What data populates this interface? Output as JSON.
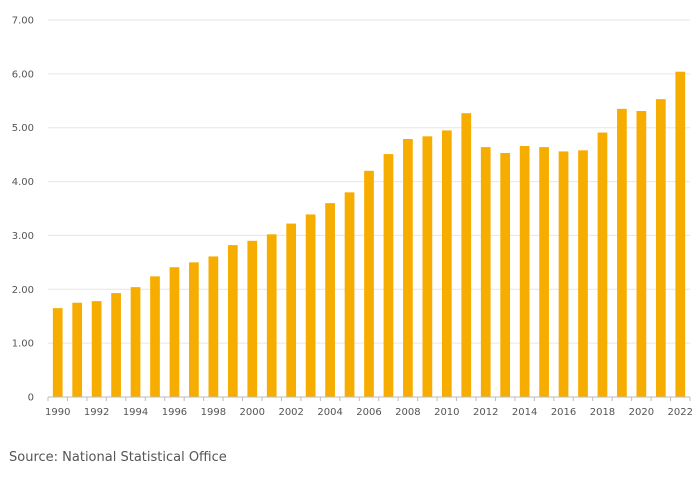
{
  "source": "Source: National Statistical Office",
  "colors": {
    "bar": "#F6AD00",
    "grid": "#e6e6e6",
    "axis": "#bbbbbb",
    "text": "#555555"
  },
  "chart_data": {
    "type": "bar",
    "title": "",
    "xlabel": "",
    "ylabel": "",
    "ylim": [
      0,
      7
    ],
    "grid": true,
    "y_ticks": [
      "0",
      "1.00",
      "2.00",
      "3.00",
      "4.00",
      "5.00",
      "6.00",
      "7.00"
    ],
    "x_tick_labels": [
      "1990",
      "1992",
      "1994",
      "1996",
      "1998",
      "2000",
      "2002",
      "2004",
      "2006",
      "2008",
      "2010",
      "2012",
      "2014",
      "2016",
      "2018",
      "2020",
      "2022"
    ],
    "categories": [
      "1990",
      "1991",
      "1992",
      "1993",
      "1994",
      "1995",
      "1996",
      "1997",
      "1998",
      "1999",
      "2000",
      "2001",
      "2002",
      "2003",
      "2004",
      "2005",
      "2006",
      "2007",
      "2008",
      "2009",
      "2010",
      "2011",
      "2012",
      "2013",
      "2014",
      "2015",
      "2016",
      "2017",
      "2018",
      "2019",
      "2020",
      "2021",
      "2022"
    ],
    "values": [
      1.65,
      1.75,
      1.78,
      1.93,
      2.04,
      2.24,
      2.41,
      2.5,
      2.61,
      2.82,
      2.9,
      3.02,
      3.22,
      3.39,
      3.6,
      3.8,
      4.2,
      4.51,
      4.79,
      4.84,
      4.95,
      5.27,
      4.64,
      4.53,
      4.66,
      4.64,
      4.56,
      4.58,
      4.91,
      5.35,
      5.31,
      5.53,
      6.04
    ]
  }
}
